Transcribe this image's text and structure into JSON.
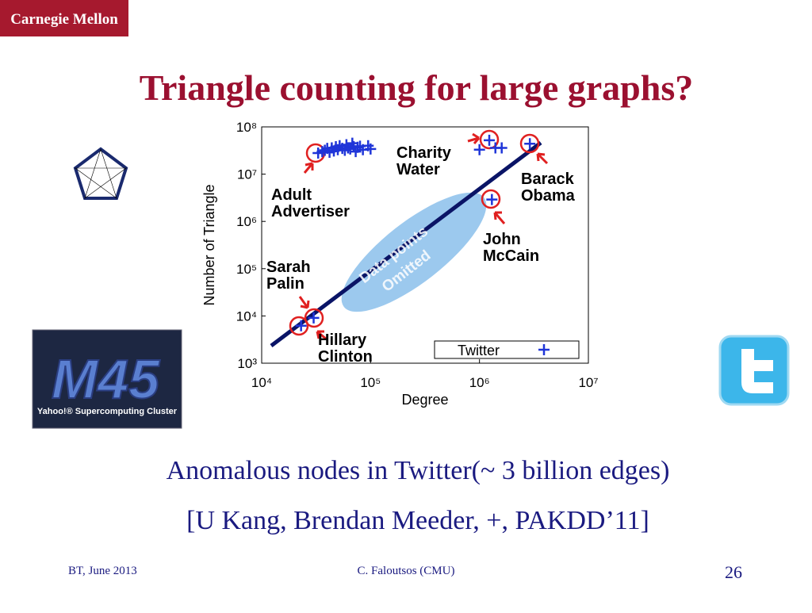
{
  "logo": "Carnegie Mellon",
  "title": "Triangle counting for large graphs?",
  "image_labels": {
    "cluster_name": "M45",
    "cluster_caption": "Yahoo!® Supercomputing Cluster"
  },
  "chart_data": {
    "type": "scatter",
    "xlabel": "Degree",
    "ylabel": "Number of Triangle",
    "log_scale": true,
    "xlim": [
      10000,
      10000000
    ],
    "ylim": [
      1000,
      100000000
    ],
    "xticks": [
      {
        "value": 10000,
        "label": "10⁴"
      },
      {
        "value": 100000,
        "label": "10⁵"
      },
      {
        "value": 1000000,
        "label": "10⁶"
      },
      {
        "value": 10000000,
        "label": "10⁷"
      }
    ],
    "yticks": [
      {
        "value": 1000,
        "label": "10³"
      },
      {
        "value": 10000,
        "label": "10⁴"
      },
      {
        "value": 100000,
        "label": "10⁵"
      },
      {
        "value": 1000000,
        "label": "10⁶"
      },
      {
        "value": 10000000,
        "label": "10⁷"
      },
      {
        "value": 100000000,
        "label": "10⁸"
      }
    ],
    "legend": "lower right",
    "series": [
      {
        "name": "Twitter",
        "color": "#1f35d8",
        "x": [
          33000,
          36000,
          38000,
          40000,
          42000,
          44000,
          46000,
          48000,
          50000,
          52000,
          55000,
          58000,
          60000,
          62000,
          65000,
          68000,
          70000,
          73000,
          76000,
          80000,
          85000,
          95000,
          100000,
          1230000,
          1000000,
          1400000,
          1600000,
          2900000,
          1300000,
          23000,
          30000
        ],
        "values": [
          28000000,
          30000000,
          32000000,
          35000000,
          29000000,
          36000000,
          31000000,
          38000000,
          33000000,
          40000000,
          35000000,
          32000000,
          42000000,
          36000000,
          34000000,
          45000000,
          38000000,
          30000000,
          37000000,
          39000000,
          33000000,
          40000000,
          34000000,
          52000000,
          33000000,
          36000000,
          36000000,
          44000000,
          2900000,
          6200,
          9100
        ]
      }
    ],
    "annotations": [
      [
        "Adult",
        "Advertiser"
      ],
      [
        "Charity",
        "Water"
      ],
      [
        "Barack",
        "Obama"
      ],
      [
        "John",
        "McCain"
      ],
      [
        "Sarah",
        "Palin"
      ],
      [
        "Hillary",
        "Clinton"
      ],
      [
        "Data points",
        "Omitted"
      ]
    ]
  },
  "caption": [
    "Anomalous nodes in Twitter(~ 3 billion edges)",
    "[U Kang, Brendan Meeder, +, PAKDD’11]"
  ],
  "footer": {
    "left": "BT, June 2013",
    "center": "C. Faloutsos (CMU)",
    "page": "26"
  }
}
